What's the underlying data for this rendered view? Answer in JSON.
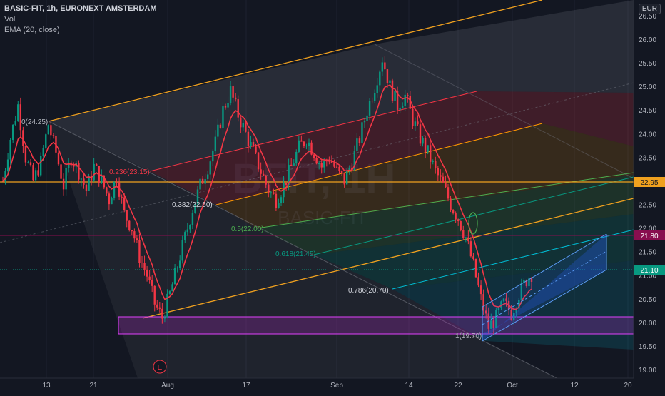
{
  "header": {
    "title": "BASIC-FIT, 1h, EURONEXT AMSTERDAM",
    "indicator_vol": "Vol",
    "indicator_ema": "EMA (20, close)"
  },
  "currency": "EUR",
  "watermark": {
    "ticker": "BFIT, 1H",
    "name": "BASIC-FIT"
  },
  "chart_data": {
    "type": "candlestick",
    "price_axis_ticks": [
      "26.50",
      "26.00",
      "25.50",
      "25.00",
      "24.50",
      "24.00",
      "23.50",
      "23.00",
      "22.50",
      "22.00",
      "21.50",
      "21.00",
      "20.50",
      "20.00",
      "19.50",
      "19.00"
    ],
    "price_axis_values": [
      26.5,
      26.0,
      25.5,
      25.0,
      24.5,
      24.0,
      23.5,
      23.0,
      22.5,
      22.0,
      21.5,
      21.0,
      20.5,
      20.0,
      19.5,
      19.0
    ],
    "time_axis_ticks": [
      "13",
      "21",
      "Aug",
      "17",
      "Sep",
      "14",
      "22",
      "Oct",
      "12",
      "20"
    ],
    "price_labels": [
      {
        "text": "22.95",
        "value": 22.95,
        "color": "#f0a11f"
      },
      {
        "text": "21.80",
        "value": 21.8,
        "color": "#880e4f"
      },
      {
        "text": "21.10",
        "value": 21.1,
        "color": "#089981"
      }
    ],
    "fib_levels": [
      {
        "label": "0(24.25)",
        "ratio": 0,
        "price": 24.25,
        "color": "#787b86"
      },
      {
        "label": "0.236(23.15)",
        "ratio": 0.236,
        "price": 23.15,
        "color": "#f23645"
      },
      {
        "label": "0.382(22.50)",
        "ratio": 0.382,
        "price": 22.5,
        "color": "#ff9800"
      },
      {
        "label": "0.5(22.00)",
        "ratio": 0.5,
        "price": 22.0,
        "color": "#4caf50"
      },
      {
        "label": "0.618(21.45)",
        "ratio": 0.618,
        "price": 21.45,
        "color": "#089981"
      },
      {
        "label": "0.786(20.70)",
        "ratio": 0.786,
        "price": 20.7,
        "color": "#00bcd4"
      },
      {
        "label": "1(19.70)",
        "ratio": 1,
        "price": 19.7,
        "color": "#787b86"
      }
    ],
    "event_marker": "E",
    "series": [
      {
        "name": "Vol"
      },
      {
        "name": "EMA (20, close)",
        "color": "#f23645"
      }
    ],
    "approx_close_path": [
      23.0,
      23.9,
      24.6,
      23.5,
      23.0,
      23.4,
      24.2,
      23.6,
      22.9,
      23.5,
      23.2,
      22.8,
      23.3,
      23.0,
      22.6,
      23.1,
      22.3,
      22.0,
      21.4,
      21.0,
      20.4,
      20.1,
      20.6,
      21.2,
      21.8,
      22.4,
      22.9,
      23.3,
      23.8,
      24.5,
      24.9,
      24.4,
      24.0,
      23.6,
      23.2,
      22.8,
      22.6,
      22.9,
      23.3,
      23.7,
      23.9,
      23.6,
      23.3,
      23.5,
      23.2,
      23.0,
      23.4,
      23.9,
      24.5,
      25.0,
      25.6,
      25.0,
      24.6,
      24.8,
      24.3,
      23.9,
      23.6,
      23.2,
      22.9,
      22.5,
      22.2,
      21.8,
      21.2,
      20.5,
      19.9,
      20.1,
      20.4,
      20.2,
      20.6,
      20.9,
      21.1
    ]
  }
}
